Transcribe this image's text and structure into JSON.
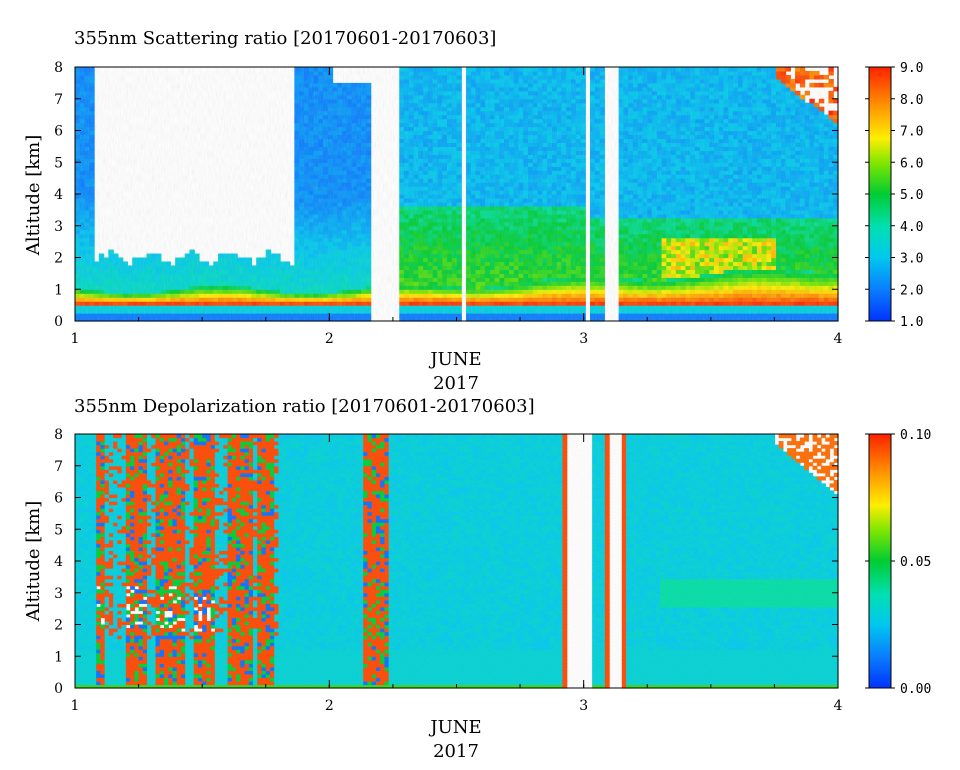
{
  "chart_data": [
    {
      "type": "heatmap",
      "title": "355nm Scattering ratio [20170601-20170603]",
      "ylabel": "Altitude [km]",
      "xlabel": "JUNE",
      "xlabel2": "2017",
      "xlim": [
        1,
        4
      ],
      "ylim": [
        0,
        8
      ],
      "xticks": [
        "1",
        "2",
        "3",
        "4"
      ],
      "yticks": [
        "0",
        "1",
        "2",
        "3",
        "4",
        "5",
        "6",
        "7",
        "8"
      ],
      "colorbar": {
        "range": [
          1.0,
          9.0
        ],
        "ticks": [
          "1.0",
          "2.0",
          "3.0",
          "4.0",
          "5.0",
          "6.0",
          "7.0",
          "8.0",
          "9.0"
        ]
      },
      "features": {
        "boundary_layer": {
          "base_km": 0.55,
          "top_km": 1.0,
          "value": 8.0
        },
        "missing_columns_day": [
          [
            2.17,
            2.27
          ],
          [
            2.52,
            2.53
          ],
          [
            3.0,
            3.03
          ],
          [
            3.09,
            3.14
          ]
        ],
        "cloud_top_right": {
          "day_range": [
            3.75,
            4.0
          ],
          "alt_range_km": [
            6.2,
            8.0
          ],
          "value": 8.5
        }
      }
    },
    {
      "type": "heatmap",
      "title": "355nm Depolarization ratio [20170601-20170603]",
      "ylabel": "Altitude [km]",
      "xlabel": "JUNE",
      "xlabel2": "2017",
      "xlim": [
        1,
        4
      ],
      "ylim": [
        0,
        8
      ],
      "xticks": [
        "1",
        "2",
        "3",
        "4"
      ],
      "yticks": [
        "0",
        "1",
        "2",
        "3",
        "4",
        "5",
        "6",
        "7",
        "8"
      ],
      "colorbar": {
        "range": [
          0.0,
          0.1
        ],
        "ticks": [
          "0.00",
          "0.05",
          "0.10"
        ]
      },
      "features": {
        "background_value": 0.025,
        "noisy_columns_day": [
          [
            1.08,
            1.11
          ],
          [
            1.2,
            1.28
          ],
          [
            1.32,
            1.43
          ],
          [
            1.47,
            1.55
          ],
          [
            1.6,
            1.7
          ],
          [
            1.72,
            1.78
          ],
          [
            2.14,
            2.23
          ]
        ],
        "missing_columns_day": [
          [
            2.92,
            3.04
          ],
          [
            3.08,
            3.16
          ]
        ],
        "cloud_top_right": {
          "day_range": [
            3.75,
            4.0
          ],
          "alt_range_km": [
            6.0,
            8.0
          ],
          "value": 0.1
        }
      }
    }
  ]
}
